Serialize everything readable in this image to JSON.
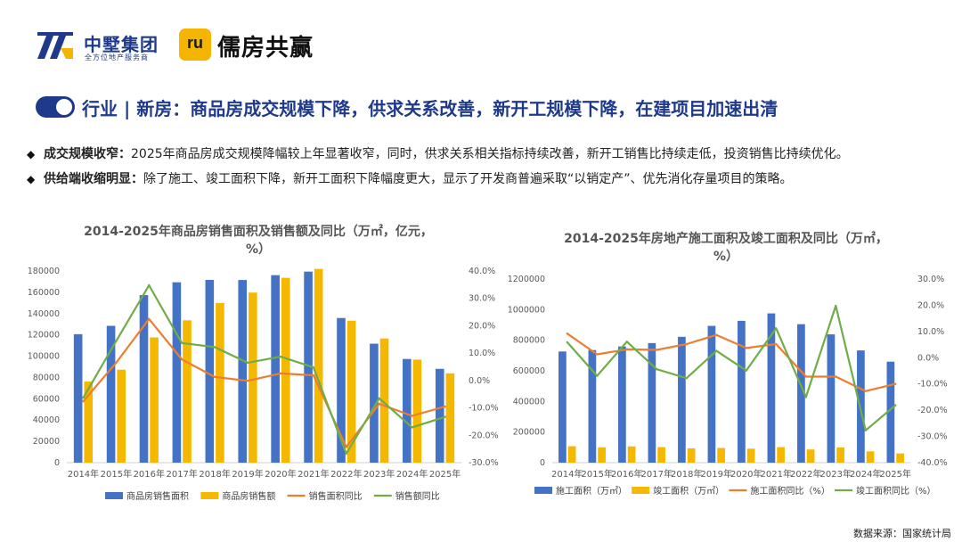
{
  "brand": {
    "zj_name": "中墅集团",
    "zj_sub": "全方位地产服务商",
    "ru_mark": "ru",
    "ru_name": "儒房共赢"
  },
  "title": "行业 | 新房：商品房成交规模下降，供求关系改善，新开工规模下降，在建项目加速出清",
  "bullets": [
    {
      "head": "成交规模收窄：",
      "body": "2025年商品房成交规模降幅较上年显著收窄，同时，供求关系相关指标持续改善，新开工销售比持续走低，投资销售比持续优化。"
    },
    {
      "head": "供给端收缩明显：",
      "body": "除了施工、竣工面积下降，新开工面积下降幅度更大，显示了开发商普遍采取“以销定产”、优先消化存量项目的策略。"
    }
  ],
  "source": "数据来源：国家统计局",
  "chart_data": [
    {
      "type": "bar",
      "title_line1": "2014-2025年商品房销售面积及销售额及同比（万㎡，亿元，",
      "title_line2": "%）",
      "categories": [
        "2014年",
        "2015年",
        "2016年",
        "2017年",
        "2018年",
        "2019年",
        "2020年",
        "2021年",
        "2022年",
        "2023年",
        "2024年",
        "2025年"
      ],
      "ylim": [
        0,
        180000
      ],
      "yticks": [
        "0",
        "20000",
        "40000",
        "60000",
        "80000",
        "100000",
        "120000",
        "140000",
        "160000",
        "180000"
      ],
      "y2lim": [
        -30,
        40
      ],
      "y2ticks": [
        "-30.0%",
        "-20.0%",
        "-10.0%",
        "0.0%",
        "10.0%",
        "20.0%",
        "30.0%",
        "40.0%"
      ],
      "bar_series": [
        {
          "name": "商品房销售面积",
          "color": "#4472c4",
          "values": [
            120649,
            128495,
            157349,
            169408,
            171654,
            171558,
            176086,
            179433,
            135837,
            111735,
            97385,
            88100
          ]
        },
        {
          "name": "商品房销售额",
          "color": "#f5b800",
          "values": [
            76292,
            87281,
            117627,
            133701,
            149973,
            159725,
            173613,
            181930,
            133308,
            116622,
            96750,
            83900
          ]
        }
      ],
      "line_series": [
        {
          "name": "销售面积同比",
          "color": "#ed7d31",
          "values": [
            -7.6,
            6.5,
            22.5,
            7.7,
            1.3,
            -0.1,
            2.6,
            1.9,
            -24.3,
            -8.5,
            -12.9,
            -9.5
          ]
        },
        {
          "name": "销售额同比",
          "color": "#70ad47",
          "values": [
            -6.3,
            14.4,
            34.8,
            13.7,
            12.2,
            6.5,
            8.7,
            4.8,
            -26.7,
            -6.5,
            -17.1,
            -13.3
          ]
        }
      ]
    },
    {
      "type": "bar",
      "title_line1": "2014-2025年房地产施工面积及竣工面积及同比（万㎡，",
      "title_line2": "%）",
      "categories": [
        "2014年",
        "2015年",
        "2016年",
        "2017年",
        "2018年",
        "2019年",
        "2020年",
        "2021年",
        "2022年",
        "2023年",
        "2024年",
        "2025年"
      ],
      "ylim": [
        0,
        1200000
      ],
      "yticks": [
        "0",
        "200000",
        "400000",
        "600000",
        "800000",
        "1000000",
        "1200000"
      ],
      "y2lim": [
        -40,
        30
      ],
      "y2ticks": [
        "-40.0%",
        "-30.0%",
        "-20.0%",
        "-10.0%",
        "0.0%",
        "10.0%",
        "20.0%",
        "30.0%"
      ],
      "bar_series": [
        {
          "name": "施工面积（万㎡）",
          "color": "#4472c4",
          "values": [
            726482,
            735693,
            758975,
            781484,
            822300,
            893821,
            926759,
            975387,
            904999,
            838364,
            733247,
            659890
          ]
        },
        {
          "name": "竣工面积（万㎡）",
          "color": "#f5b800",
          "values": [
            107459,
            100039,
            106128,
            101486,
            93550,
            95942,
            91218,
            101412,
            86222,
            99831,
            73743,
            60348
          ]
        }
      ],
      "line_series": [
        {
          "name": "施工面积同比（%）",
          "color": "#ed7d31",
          "values": [
            9.2,
            1.3,
            3.2,
            3.0,
            5.2,
            8.7,
            3.7,
            5.2,
            -7.2,
            -7.2,
            -12.7,
            -10.0
          ]
        },
        {
          "name": "竣工面积同比（%）",
          "color": "#70ad47",
          "values": [
            5.9,
            -6.9,
            6.1,
            -4.4,
            -7.8,
            2.6,
            -4.9,
            11.2,
            -15.0,
            19.8,
            -27.7,
            -18.1
          ]
        }
      ]
    }
  ]
}
